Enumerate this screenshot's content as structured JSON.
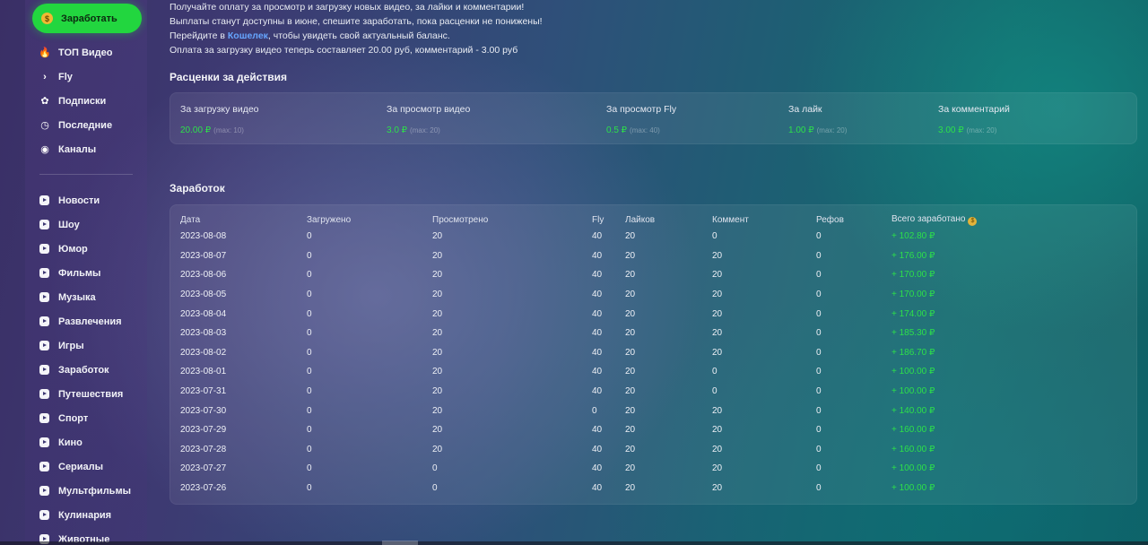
{
  "sidebar": {
    "earn_button": "Заработать",
    "nav": [
      {
        "label": "ТОП Видео",
        "icon": "fire-icon"
      },
      {
        "label": "Fly",
        "icon": "chevron-right-icon"
      },
      {
        "label": "Подписки",
        "icon": "subscriptions-icon"
      },
      {
        "label": "Последние",
        "icon": "clock-icon"
      },
      {
        "label": "Каналы",
        "icon": "channels-icon"
      }
    ],
    "categories": [
      "Новости",
      "Шоу",
      "Юмор",
      "Фильмы",
      "Музыка",
      "Развлечения",
      "Игры",
      "Заработок",
      "Путешествия",
      "Спорт",
      "Кино",
      "Сериалы",
      "Мультфильмы",
      "Кулинария",
      "Животные"
    ]
  },
  "intro": {
    "line1": "Получайте оплату за просмотр и загрузку новых видео, за лайки и комментарии!",
    "line2": "Выплаты станут доступны в июне, спешите заработать, пока расценки не понижены!",
    "line3_prefix": "Перейдите в ",
    "line3_link": "Кошелек",
    "line3_suffix": ", чтобы увидеть свой актуальный баланс.",
    "line4": "Оплата за загрузку видео теперь составляет 20.00 руб, комментарий - 3.00 руб"
  },
  "rates": {
    "title": "Расценки за действия",
    "items": [
      {
        "label": "За загрузку видео",
        "value": "20.00 ₽",
        "max": "(max: 10)"
      },
      {
        "label": "За просмотр видео",
        "value": "3.0 ₽",
        "max": "(max: 20)"
      },
      {
        "label": "За просмотр Fly",
        "value": "0.5 ₽",
        "max": "(max: 40)"
      },
      {
        "label": "За лайк",
        "value": "1.00 ₽",
        "max": "(max: 20)"
      },
      {
        "label": "За комментарий",
        "value": "3.00 ₽",
        "max": "(max: 20)"
      }
    ]
  },
  "earnings": {
    "title": "Заработок",
    "columns": [
      "Дата",
      "Загружено",
      "Просмотрено",
      "Fly",
      "Лайков",
      "Коммент",
      "Рефов",
      "Всего заработано"
    ],
    "rows": [
      [
        "2023-08-08",
        "0",
        "20",
        "40",
        "20",
        "0",
        "0",
        "+ 102.80 ₽"
      ],
      [
        "2023-08-07",
        "0",
        "20",
        "40",
        "20",
        "20",
        "0",
        "+ 176.00 ₽"
      ],
      [
        "2023-08-06",
        "0",
        "20",
        "40",
        "20",
        "20",
        "0",
        "+ 170.00 ₽"
      ],
      [
        "2023-08-05",
        "0",
        "20",
        "40",
        "20",
        "20",
        "0",
        "+ 170.00 ₽"
      ],
      [
        "2023-08-04",
        "0",
        "20",
        "40",
        "20",
        "20",
        "0",
        "+ 174.00 ₽"
      ],
      [
        "2023-08-03",
        "0",
        "20",
        "40",
        "20",
        "20",
        "0",
        "+ 185.30 ₽"
      ],
      [
        "2023-08-02",
        "0",
        "20",
        "40",
        "20",
        "20",
        "0",
        "+ 186.70 ₽"
      ],
      [
        "2023-08-01",
        "0",
        "20",
        "40",
        "20",
        "0",
        "0",
        "+ 100.00 ₽"
      ],
      [
        "2023-07-31",
        "0",
        "20",
        "40",
        "20",
        "0",
        "0",
        "+ 100.00 ₽"
      ],
      [
        "2023-07-30",
        "0",
        "20",
        "0",
        "20",
        "20",
        "0",
        "+ 140.00 ₽"
      ],
      [
        "2023-07-29",
        "0",
        "20",
        "40",
        "20",
        "20",
        "0",
        "+ 160.00 ₽"
      ],
      [
        "2023-07-28",
        "0",
        "20",
        "40",
        "20",
        "20",
        "0",
        "+ 160.00 ₽"
      ],
      [
        "2023-07-27",
        "0",
        "0",
        "40",
        "20",
        "20",
        "0",
        "+ 100.00 ₽"
      ],
      [
        "2023-07-26",
        "0",
        "0",
        "40",
        "20",
        "20",
        "0",
        "+ 100.00 ₽"
      ]
    ]
  },
  "colors": {
    "accent_green": "#22d63f",
    "value_green": "#2de04a",
    "link_blue": "#66a6ff"
  }
}
